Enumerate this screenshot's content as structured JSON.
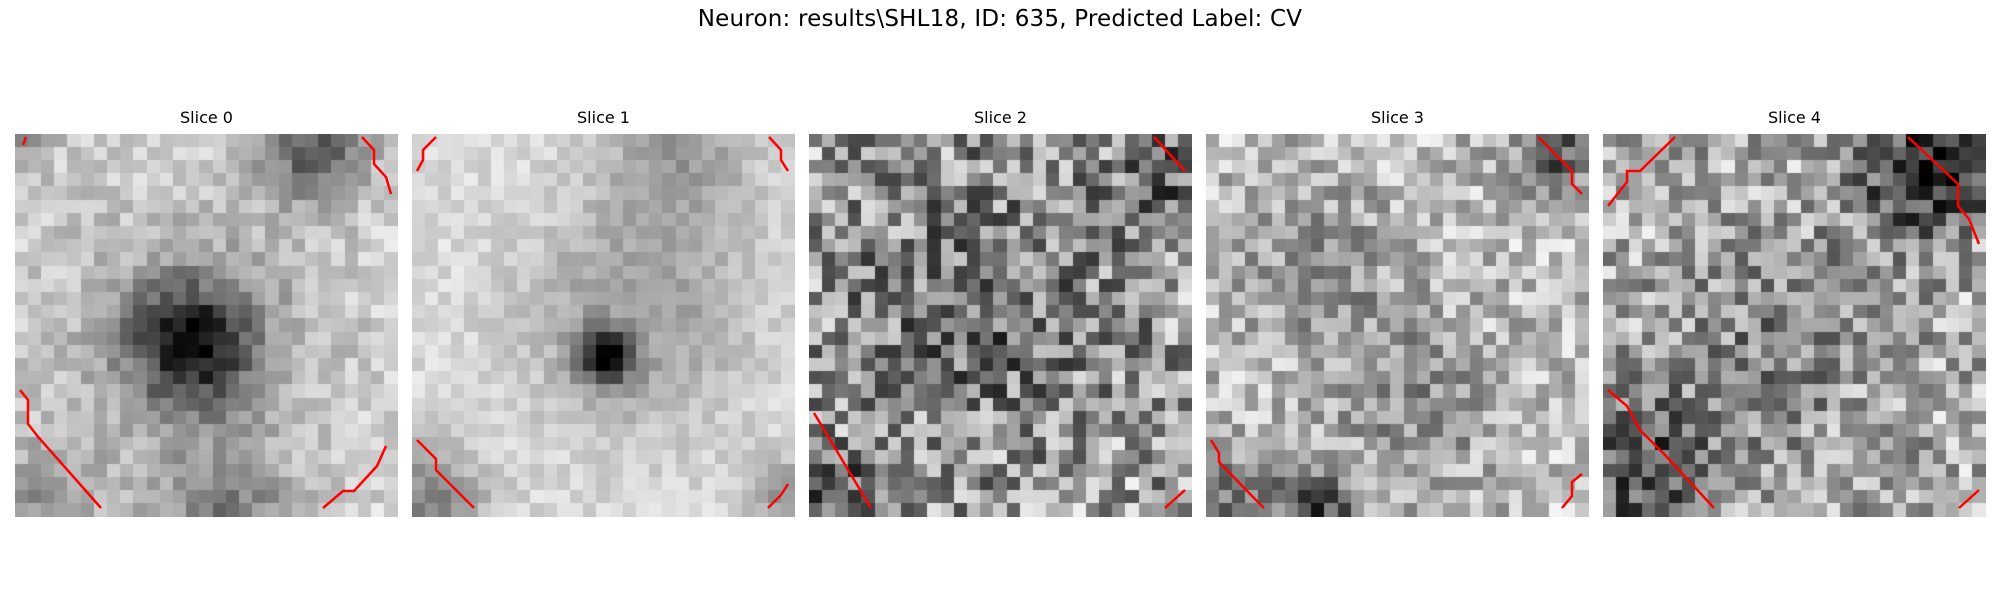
{
  "figure": {
    "suptitle": "Neuron: results\\SHL18, ID: 635, Predicted Label: CV"
  },
  "colors": {
    "background": "#ffffff",
    "contour": "#ff0000",
    "colormap": "gray"
  },
  "panels": [
    {
      "title": "Slice 0",
      "seed": 11,
      "pattern": "dark-center-left"
    },
    {
      "title": "Slice 1",
      "seed": 23,
      "pattern": "dark-ring-center"
    },
    {
      "title": "Slice 2",
      "seed": 37,
      "pattern": "noisy-mid"
    },
    {
      "title": "Slice 3",
      "seed": 41,
      "pattern": "light-noisy"
    },
    {
      "title": "Slice 4",
      "seed": 53,
      "pattern": "mixed-dark-corners"
    }
  ]
}
